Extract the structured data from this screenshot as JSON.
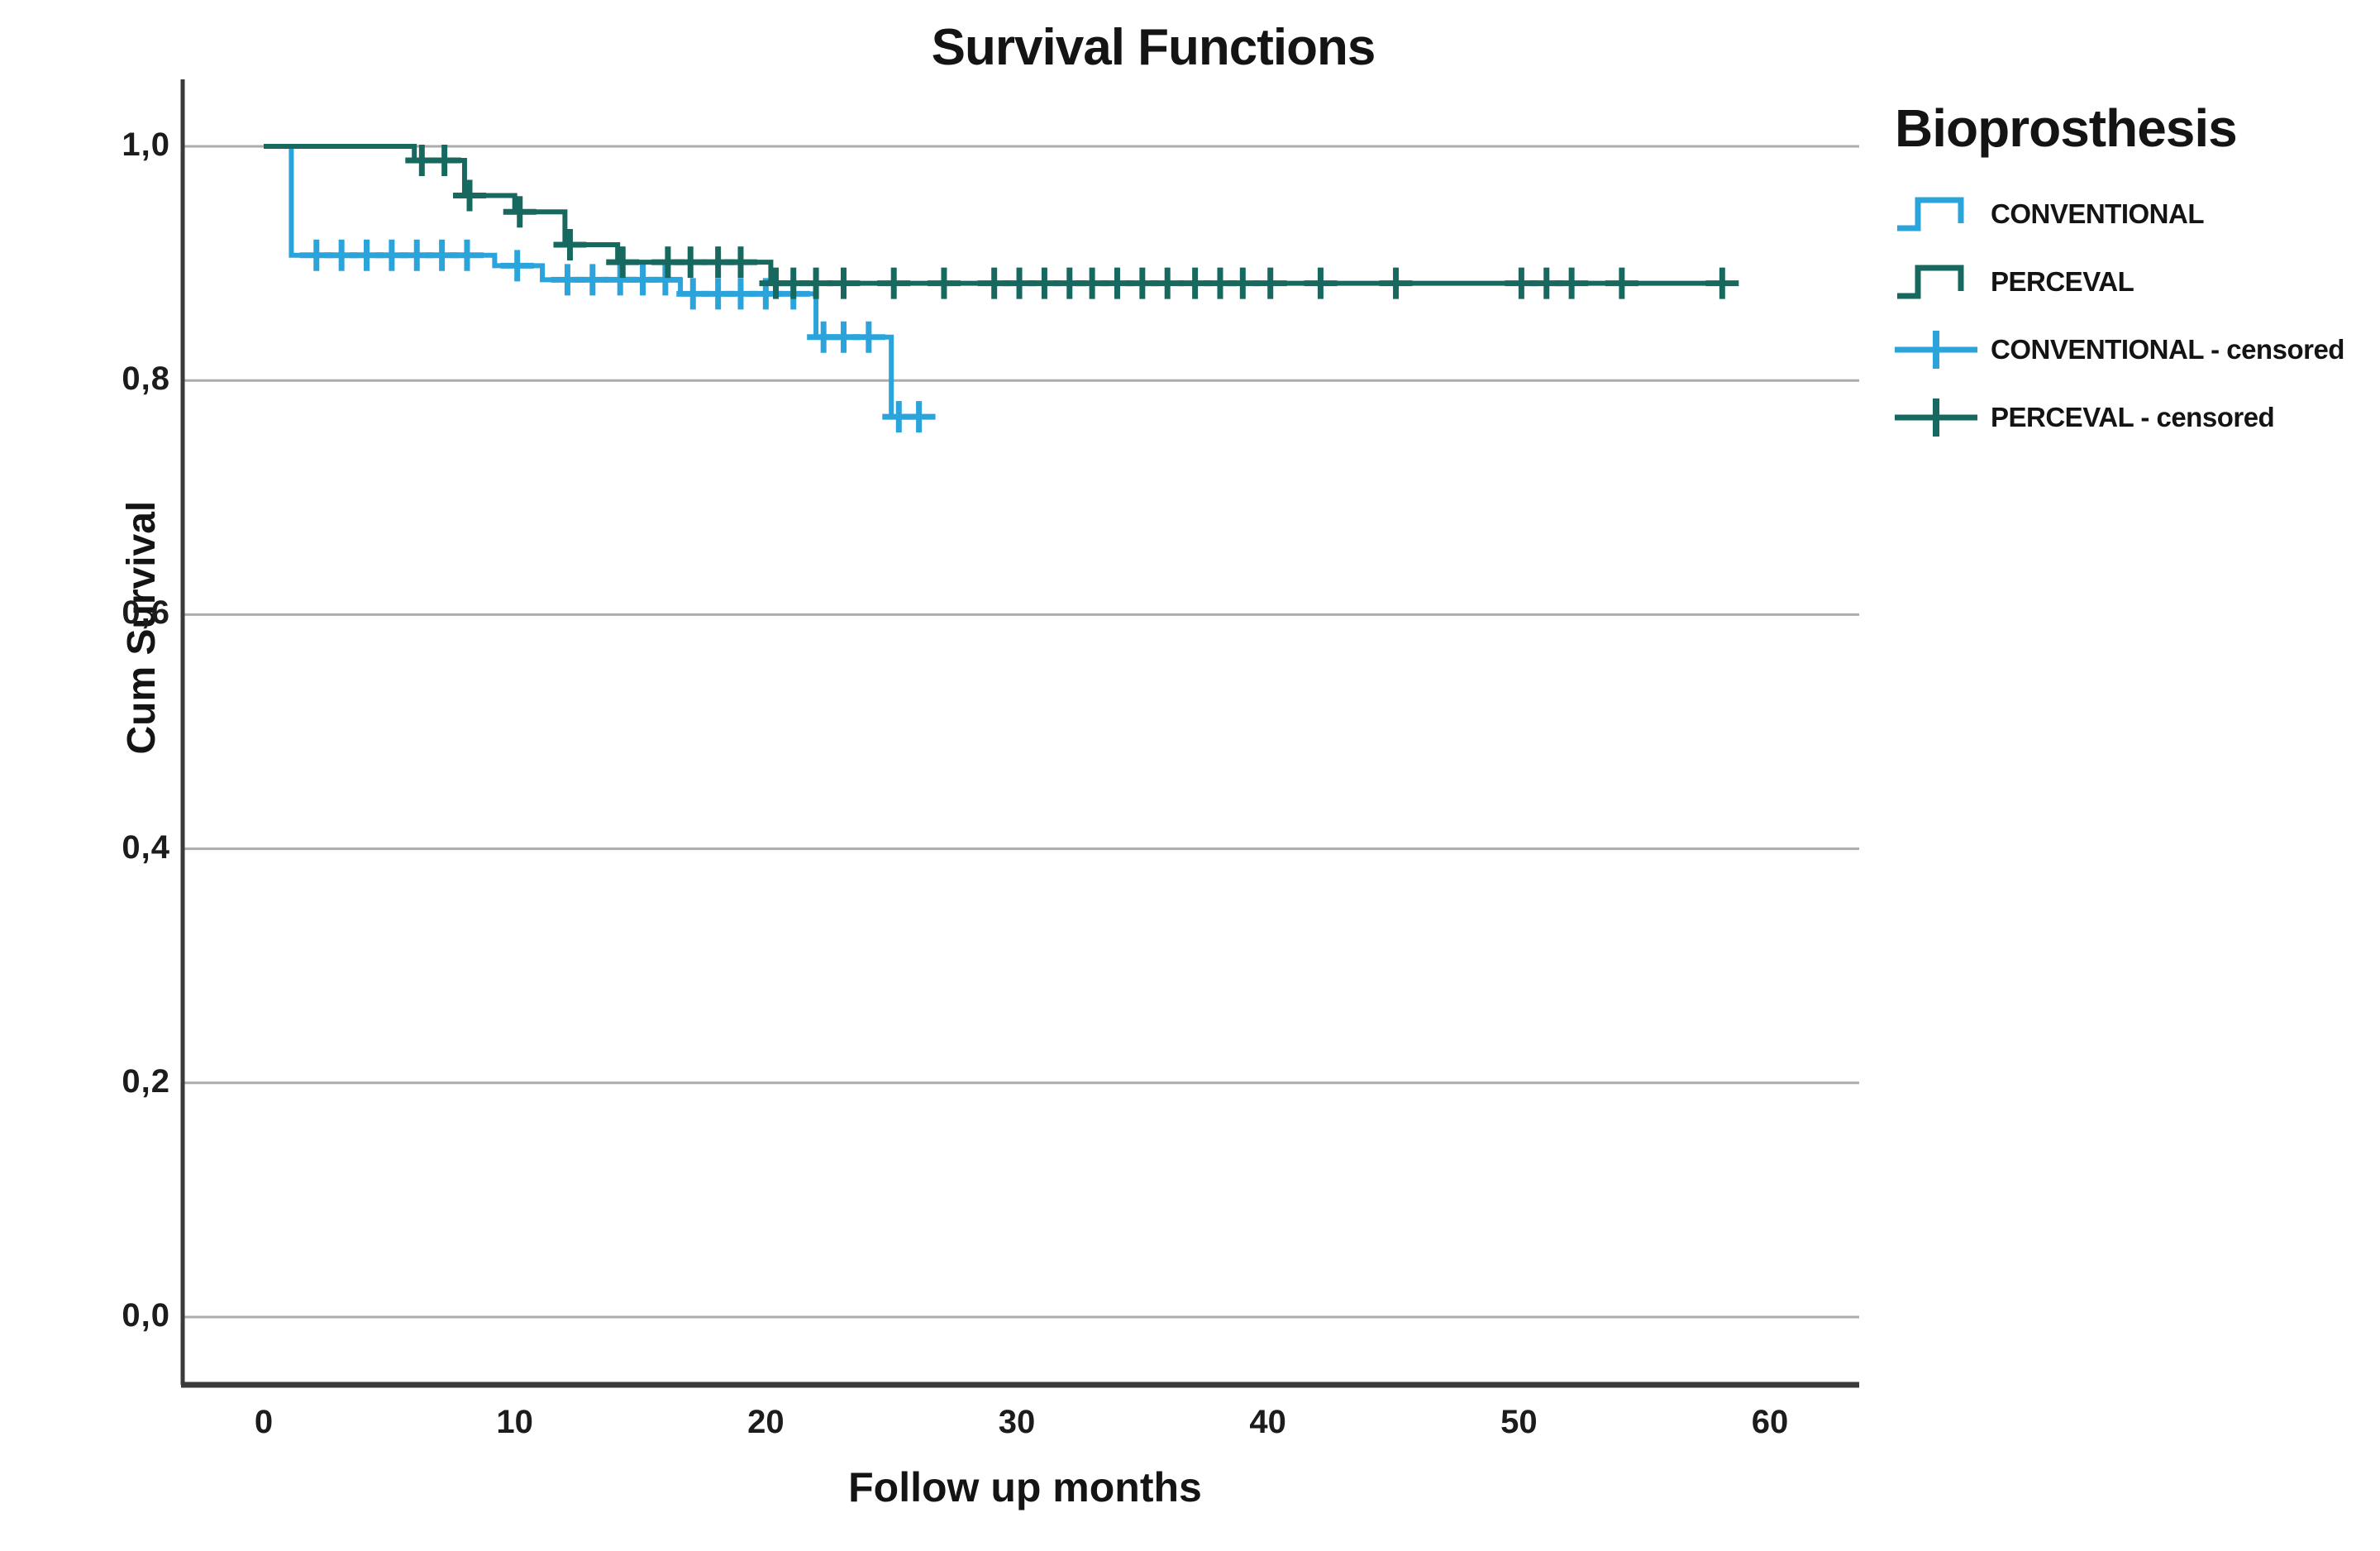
{
  "title": "Survival Functions",
  "axes": {
    "x_label": "Follow up months",
    "y_label": "Cum Survival"
  },
  "legend": {
    "title": "Bioprosthesis",
    "entries": [
      {
        "id": "conventional",
        "label": "CONVENTIONAL",
        "color": "#2BA3DB",
        "swatch": "step"
      },
      {
        "id": "perceval",
        "label": "PERCEVAL",
        "color": "#17695F",
        "swatch": "step"
      },
      {
        "id": "conventional-censored",
        "label": "CONVENTIONAL - censored",
        "color": "#2BA3DB",
        "swatch": "cross"
      },
      {
        "id": "perceval-censored",
        "label": "PERCEVAL - censored",
        "color": "#17695F",
        "swatch": "cross"
      }
    ]
  },
  "chart_data": {
    "type": "line",
    "chart_style": "kaplan-meier-step",
    "title": "Survival Functions",
    "xlabel": "Follow up months",
    "ylabel": "Cum Survival",
    "xlim": [
      0,
      63
    ],
    "ylim": [
      0,
      1.0
    ],
    "xticks": [
      0,
      10,
      20,
      30,
      40,
      50,
      60
    ],
    "yticks": [
      0.0,
      0.2,
      0.4,
      0.6,
      0.8,
      1.0
    ],
    "ytick_labels": [
      "0,0",
      "0,2",
      "0,4",
      "0,6",
      "0,8",
      "1,0"
    ],
    "grid": "horizontal-only",
    "legend_position": "right",
    "grid_color": "#ACACAC",
    "axis_color": "#3A3A3A",
    "series": [
      {
        "name": "CONVENTIONAL",
        "color": "#2BA3DB",
        "steps": [
          [
            0,
            1.0
          ],
          [
            1.1,
            0.907
          ],
          [
            9.2,
            0.898
          ],
          [
            11.1,
            0.886
          ],
          [
            16.6,
            0.874
          ],
          [
            22.0,
            0.837
          ],
          [
            25.0,
            0.769
          ]
        ],
        "end_x": 26.5,
        "censored": [
          [
            2.1,
            0.907
          ],
          [
            3.1,
            0.907
          ],
          [
            4.1,
            0.907
          ],
          [
            5.1,
            0.907
          ],
          [
            6.1,
            0.907
          ],
          [
            7.1,
            0.907
          ],
          [
            8.1,
            0.907
          ],
          [
            10.1,
            0.898
          ],
          [
            12.1,
            0.886
          ],
          [
            13.1,
            0.886
          ],
          [
            14.2,
            0.886
          ],
          [
            15.1,
            0.886
          ],
          [
            16.0,
            0.886
          ],
          [
            17.1,
            0.874
          ],
          [
            18.1,
            0.874
          ],
          [
            19.0,
            0.874
          ],
          [
            20.0,
            0.874
          ],
          [
            21.1,
            0.874
          ],
          [
            22.3,
            0.837
          ],
          [
            23.1,
            0.837
          ],
          [
            24.1,
            0.837
          ],
          [
            25.3,
            0.769
          ],
          [
            26.1,
            0.769
          ]
        ]
      },
      {
        "name": "PERCEVAL",
        "color": "#17695F",
        "steps": [
          [
            0,
            1.0
          ],
          [
            6.0,
            0.988
          ],
          [
            8.0,
            0.958
          ],
          [
            10.0,
            0.944
          ],
          [
            12.0,
            0.916
          ],
          [
            14.1,
            0.901
          ],
          [
            20.2,
            0.883
          ]
        ],
        "end_x": 58.6,
        "censored": [
          [
            6.3,
            0.988
          ],
          [
            7.2,
            0.988
          ],
          [
            8.2,
            0.958
          ],
          [
            10.2,
            0.944
          ],
          [
            12.2,
            0.916
          ],
          [
            14.3,
            0.901
          ],
          [
            16.1,
            0.901
          ],
          [
            17.0,
            0.901
          ],
          [
            18.1,
            0.901
          ],
          [
            19.0,
            0.901
          ],
          [
            20.4,
            0.883
          ],
          [
            21.1,
            0.883
          ],
          [
            22.0,
            0.883
          ],
          [
            23.1,
            0.883
          ],
          [
            25.1,
            0.883
          ],
          [
            27.1,
            0.883
          ],
          [
            29.1,
            0.883
          ],
          [
            30.1,
            0.883
          ],
          [
            31.1,
            0.883
          ],
          [
            32.1,
            0.883
          ],
          [
            33.0,
            0.883
          ],
          [
            34.0,
            0.883
          ],
          [
            35.0,
            0.883
          ],
          [
            36.0,
            0.883
          ],
          [
            37.1,
            0.883
          ],
          [
            38.1,
            0.883
          ],
          [
            39.0,
            0.883
          ],
          [
            40.1,
            0.883
          ],
          [
            42.1,
            0.883
          ],
          [
            45.1,
            0.883
          ],
          [
            50.1,
            0.883
          ],
          [
            51.1,
            0.883
          ],
          [
            52.1,
            0.883
          ],
          [
            54.1,
            0.883
          ],
          [
            58.1,
            0.883
          ]
        ]
      }
    ]
  }
}
